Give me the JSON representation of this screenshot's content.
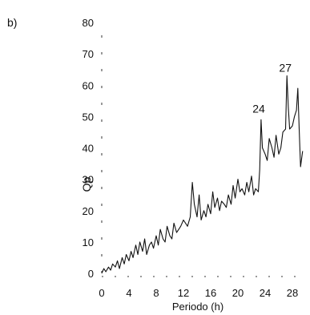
{
  "panel_label": "b)",
  "chart_data": {
    "type": "line",
    "xlabel": "Periodo (h)",
    "ylabel": "Qp",
    "xlim": [
      0,
      30
    ],
    "ylim": [
      0,
      80
    ],
    "xticks": [
      0,
      4,
      8,
      12,
      16,
      20,
      24,
      28
    ],
    "yticks": [
      0,
      10,
      20,
      30,
      40,
      50,
      60,
      70,
      80
    ],
    "grid": false,
    "annotations": [
      {
        "text": "24",
        "x": 23.3,
        "y": 50
      },
      {
        "text": "27",
        "x": 27.2,
        "y": 63
      }
    ],
    "series": [
      {
        "x": [
          0,
          0.3,
          0.6,
          1.0,
          1.3,
          1.6,
          2.0,
          2.3,
          2.6,
          3.0,
          3.3,
          3.6,
          4.0,
          4.3,
          4.6,
          5.0,
          5.3,
          5.6,
          6.0,
          6.3,
          6.6,
          7.0,
          7.3,
          7.6,
          8.0,
          8.3,
          8.6,
          9.0,
          9.3,
          9.6,
          10.0,
          10.3,
          10.6,
          11.0,
          11.3,
          11.6,
          12.0,
          12.3,
          12.6,
          13.0,
          13.3,
          13.6,
          14.0,
          14.3,
          14.6,
          15.0,
          15.3,
          15.6,
          16.0,
          16.3,
          16.6,
          17.0,
          17.3,
          17.6,
          18.0,
          18.3,
          18.6,
          19.0,
          19.3,
          19.6,
          20.0,
          20.3,
          20.6,
          21.0,
          21.3,
          21.6,
          22.0,
          22.3,
          22.6,
          23.0,
          23.2,
          23.4,
          23.6,
          24.0,
          24.3,
          24.6,
          25.0,
          25.3,
          25.6,
          26.0,
          26.3,
          26.6,
          27.0,
          27.2,
          27.4,
          27.6,
          28.0,
          28.3,
          28.6,
          28.8,
          29.0,
          29.2,
          29.5
        ],
        "values": [
          0,
          1.5,
          0.5,
          2,
          1,
          3,
          2,
          4,
          1.5,
          5,
          3,
          6,
          4,
          7,
          5,
          9,
          6,
          10,
          7,
          11,
          6,
          9,
          10,
          8,
          12,
          9,
          14,
          11,
          10,
          15,
          12,
          11,
          16,
          13,
          14,
          15,
          17,
          16,
          15,
          18,
          29,
          22,
          18,
          25,
          17,
          20,
          18,
          22,
          19,
          26,
          21,
          24,
          20,
          23,
          22,
          21,
          25,
          22,
          28,
          24,
          30,
          26,
          27,
          25,
          29,
          26,
          31,
          25,
          27,
          26,
          33,
          49,
          40,
          38,
          36,
          43,
          40,
          37,
          44,
          38,
          40,
          45,
          46,
          63,
          53,
          46,
          47,
          50,
          52,
          59,
          46,
          34,
          39
        ]
      }
    ]
  }
}
